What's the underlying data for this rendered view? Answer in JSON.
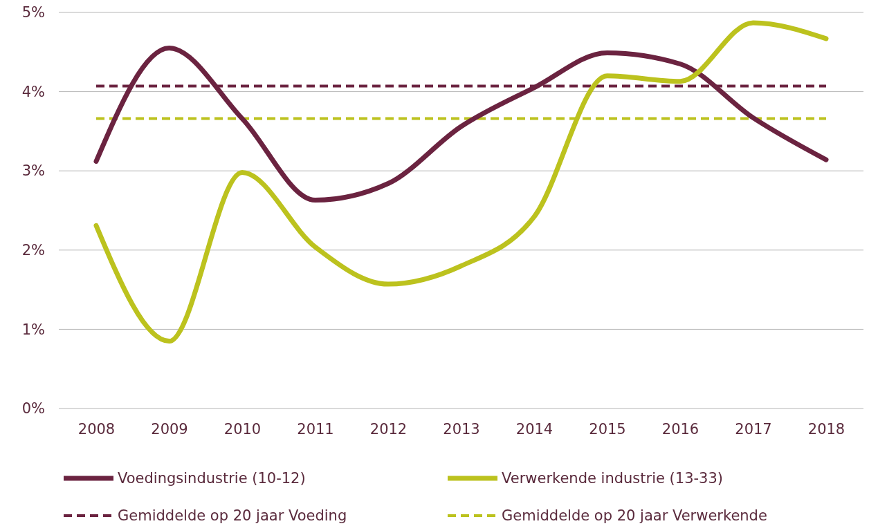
{
  "chart_data": {
    "type": "line",
    "categories": [
      "2008",
      "2009",
      "2010",
      "2011",
      "2012",
      "2013",
      "2014",
      "2015",
      "2016",
      "2017",
      "2018"
    ],
    "series": [
      {
        "name": "Voedingsindustrie (10-12)",
        "color": "#6b2340",
        "values": [
          3.12,
          4.55,
          3.66,
          2.63,
          2.84,
          3.56,
          4.05,
          4.49,
          4.35,
          3.67,
          3.14
        ]
      },
      {
        "name": "Verwerkende industrie (13-33)",
        "color": "#bcc21e",
        "values": [
          2.31,
          0.85,
          2.98,
          2.04,
          1.57,
          1.8,
          2.42,
          4.2,
          4.13,
          4.87,
          4.67
        ]
      }
    ],
    "ref_lines": [
      {
        "axis": "y",
        "value": 4.07,
        "label": "Gemiddelde op 20 jaar Voeding",
        "color": "#6b2340",
        "line_style": "dashed"
      },
      {
        "axis": "y",
        "value": 3.66,
        "label": "Gemiddelde op 20 jaar Verwerkende",
        "color": "#bcc21e",
        "line_style": "dashed"
      }
    ],
    "ylim": [
      0,
      5
    ],
    "yticks": [
      {
        "value": 0,
        "label": "0%"
      },
      {
        "value": 1,
        "label": "1%"
      },
      {
        "value": 2,
        "label": "2%"
      },
      {
        "value": 3,
        "label": "3%"
      },
      {
        "value": 4,
        "label": "4%"
      },
      {
        "value": 5,
        "label": "5%"
      }
    ],
    "grid": "y",
    "legend": "bottom",
    "line_style": "solid",
    "marker": "none"
  }
}
